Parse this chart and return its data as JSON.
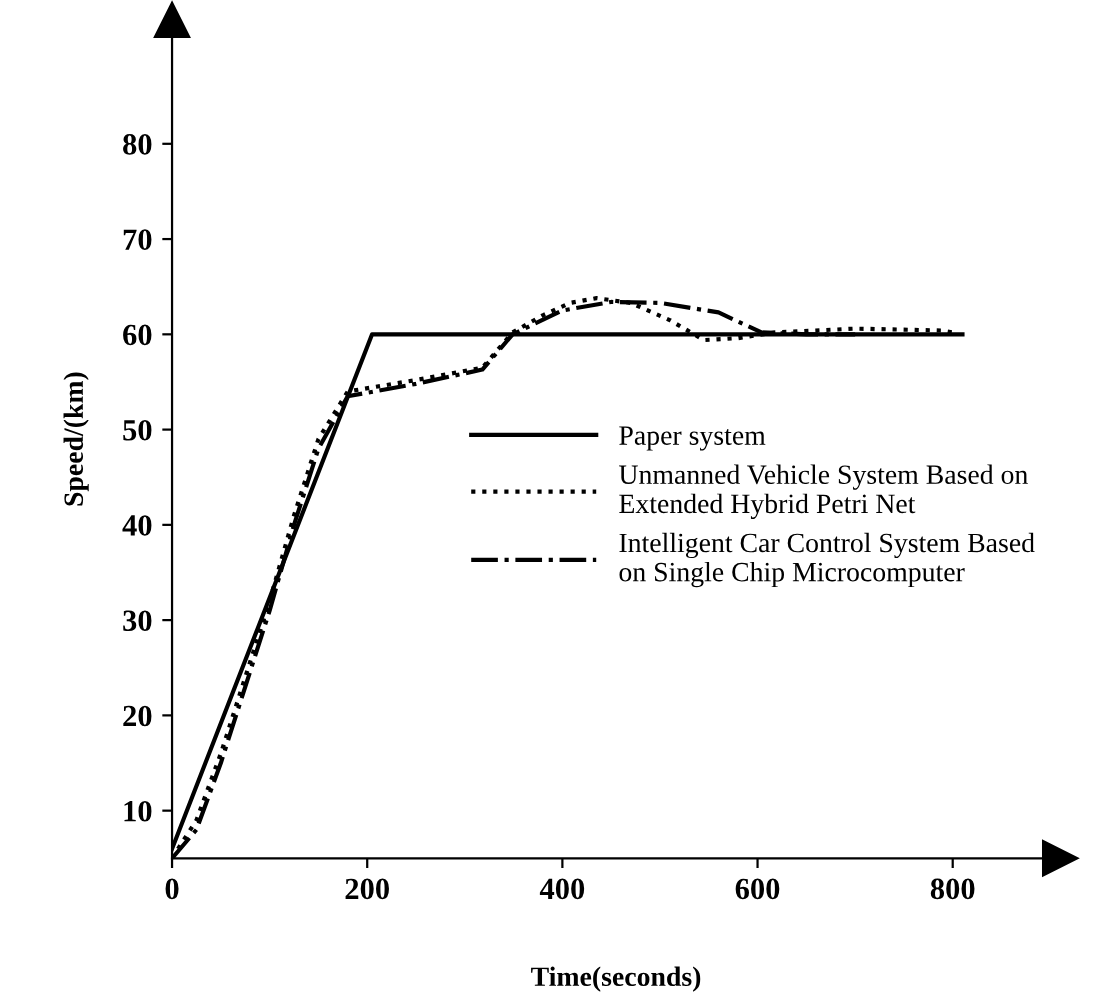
{
  "chart_data": {
    "type": "line",
    "xlabel": "Time(seconds)",
    "ylabel": "Speed/(km)",
    "xlim": [
      0,
      910
    ],
    "ylim": [
      5,
      93
    ],
    "xticks": [
      0,
      200,
      400,
      600,
      800
    ],
    "yticks": [
      10,
      20,
      30,
      40,
      50,
      60,
      70,
      80
    ],
    "legend": "right",
    "grid": false,
    "series": [
      {
        "name": "Paper system",
        "color": "#000000",
        "line_style": "solid",
        "x": [
          0,
          205,
          810
        ],
        "values": [
          6,
          60,
          60
        ]
      },
      {
        "name": "Unmanned Vehicle System Based on\nExtended Hybrid Petri Net",
        "color": "#000000",
        "line_style": "dotted",
        "x": [
          0,
          25,
          50,
          75,
          100,
          125,
          150,
          180,
          250,
          318,
          349,
          380,
          408,
          435,
          470,
          510,
          545,
          580,
          618,
          700,
          788,
          800
        ],
        "values": [
          5,
          9,
          16,
          24,
          32,
          41,
          49,
          54,
          55.2,
          56.5,
          60.2,
          62,
          63.3,
          63.8,
          63.3,
          61.5,
          59.4,
          59.6,
          60.2,
          60.6,
          60.4,
          60.2
        ]
      },
      {
        "name": "Intelligent Car Control System Based\non Single Chip Microcomputer",
        "color": "#000000",
        "line_style": "dashdot",
        "x": [
          0,
          25,
          50,
          75,
          100,
          125,
          150,
          180,
          250,
          318,
          349,
          400,
          450,
          500,
          560,
          604,
          650,
          700
        ],
        "values": [
          5,
          8,
          15,
          23,
          31,
          40,
          48,
          53.5,
          54.8,
          56.3,
          60,
          62.5,
          63.4,
          63.3,
          62.3,
          60.2,
          60,
          60
        ]
      }
    ]
  }
}
